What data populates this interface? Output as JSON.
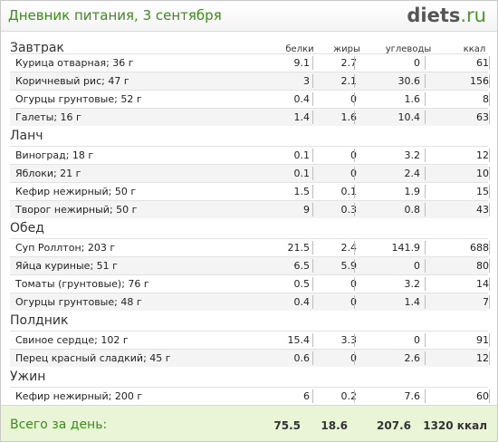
{
  "header": {
    "title": "Дневник питания, 3 сентября",
    "logo_main": "diets",
    "logo_tld": ".ru"
  },
  "columns": {
    "protein": "белки",
    "fat": "жиры",
    "carbs": "углеводы",
    "kcal": "ккал"
  },
  "meals": [
    {
      "title": "Завтрак",
      "items": [
        {
          "name": "Курица отварная; 36 г",
          "protein": "9.1",
          "fat": "2.7",
          "carbs": "0",
          "kcal": "61"
        },
        {
          "name": "Коричневый рис; 47 г",
          "protein": "3",
          "fat": "2.1",
          "carbs": "30.6",
          "kcal": "156"
        },
        {
          "name": "Огурцы грунтовые; 52 г",
          "protein": "0.4",
          "fat": "0",
          "carbs": "1.6",
          "kcal": "8"
        },
        {
          "name": "Галеты; 16 г",
          "protein": "1.4",
          "fat": "1.6",
          "carbs": "10.4",
          "kcal": "63"
        }
      ]
    },
    {
      "title": "Ланч",
      "items": [
        {
          "name": "Виноград; 18 г",
          "protein": "0.1",
          "fat": "0",
          "carbs": "3.2",
          "kcal": "12"
        },
        {
          "name": "Яблоки; 21 г",
          "protein": "0.1",
          "fat": "0",
          "carbs": "2.4",
          "kcal": "10"
        },
        {
          "name": "Кефир нежирный; 50 г",
          "protein": "1.5",
          "fat": "0.1",
          "carbs": "1.9",
          "kcal": "15"
        },
        {
          "name": "Творог нежирный; 50 г",
          "protein": "9",
          "fat": "0.3",
          "carbs": "0.8",
          "kcal": "43"
        }
      ]
    },
    {
      "title": "Обед",
      "items": [
        {
          "name": "Суп Роллтон; 203 г",
          "protein": "21.5",
          "fat": "2.4",
          "carbs": "141.9",
          "kcal": "688"
        },
        {
          "name": "Яйца куриные; 51 г",
          "protein": "6.5",
          "fat": "5.9",
          "carbs": "0",
          "kcal": "80"
        },
        {
          "name": "Томаты (грунтовые); 76 г",
          "protein": "0.5",
          "fat": "0",
          "carbs": "3.2",
          "kcal": "14"
        },
        {
          "name": "Огурцы грунтовые; 48 г",
          "protein": "0.4",
          "fat": "0",
          "carbs": "1.4",
          "kcal": "7"
        }
      ]
    },
    {
      "title": "Полдник",
      "items": [
        {
          "name": "Свиное сердце; 102 г",
          "protein": "15.4",
          "fat": "3.3",
          "carbs": "0",
          "kcal": "91"
        },
        {
          "name": "Перец красный сладкий; 45 г",
          "protein": "0.6",
          "fat": "0",
          "carbs": "2.6",
          "kcal": "12"
        }
      ]
    },
    {
      "title": "Ужин",
      "items": [
        {
          "name": "Кефир нежирный; 200 г",
          "protein": "6",
          "fat": "0.2",
          "carbs": "7.6",
          "kcal": "60"
        }
      ]
    }
  ],
  "totals": {
    "label": "Всего за день:",
    "protein": "75.5",
    "fat": "18.6",
    "carbs": "207.6",
    "kcal": "1320 ккал"
  }
}
